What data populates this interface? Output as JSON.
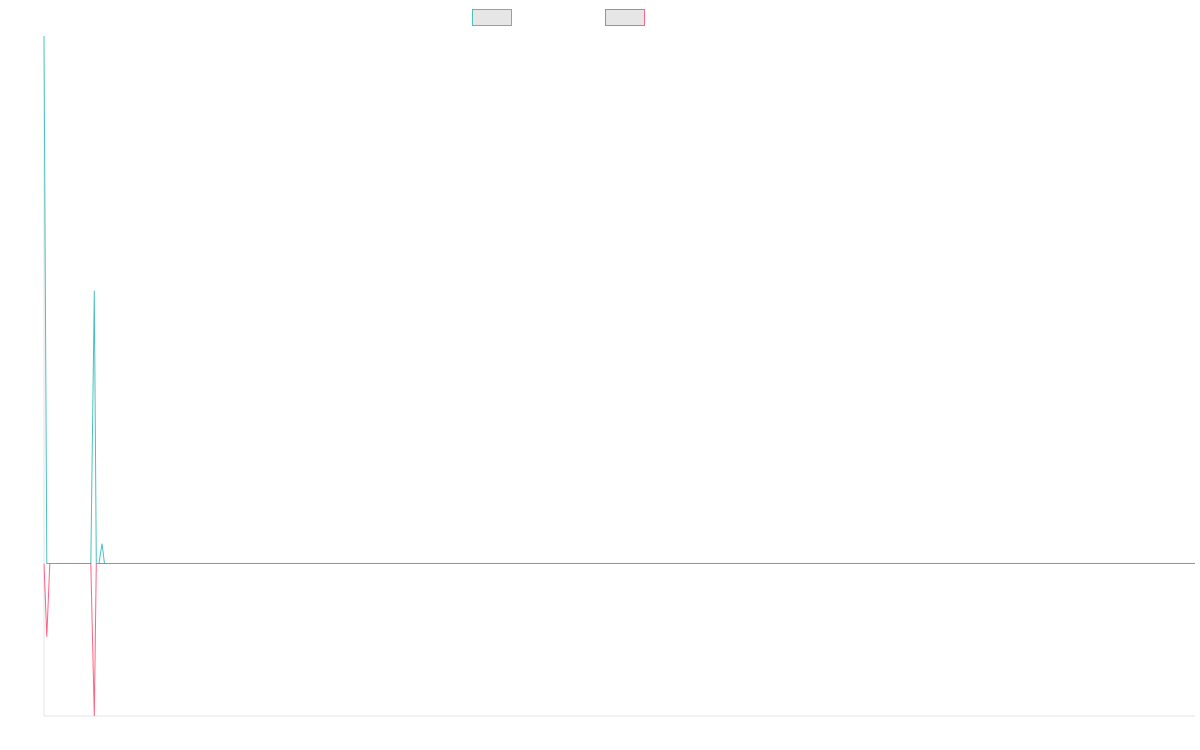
{
  "chart_data": {
    "type": "line",
    "title": "",
    "xlabel": "",
    "ylabel": "",
    "grid": false,
    "legend": "top-center",
    "x": [
      0,
      1,
      2,
      3,
      4,
      5,
      6,
      7,
      8,
      9,
      10,
      11,
      12,
      13,
      14,
      15,
      16,
      17,
      18,
      19,
      20,
      21,
      22,
      23
    ],
    "ylim": [
      -100,
      346
    ],
    "series": [
      {
        "name": "",
        "color": "#4bc0c0",
        "fill": "#e6e6e6",
        "values": [
          346,
          0,
          0,
          0,
          0,
          0,
          0,
          0,
          0,
          0,
          0,
          0,
          0,
          0,
          0,
          0,
          0,
          0,
          179,
          0,
          0,
          13,
          0,
          0
        ]
      },
      {
        "name": "",
        "color": "#ff6384",
        "fill": "#e6e6e6",
        "values": [
          0,
          -48,
          0,
          0,
          0,
          0,
          0,
          0,
          0,
          0,
          0,
          0,
          0,
          0,
          0,
          0,
          0,
          0,
          -100,
          0,
          0,
          0,
          0,
          0
        ]
      }
    ],
    "x_extent": [
      0,
      440
    ]
  }
}
